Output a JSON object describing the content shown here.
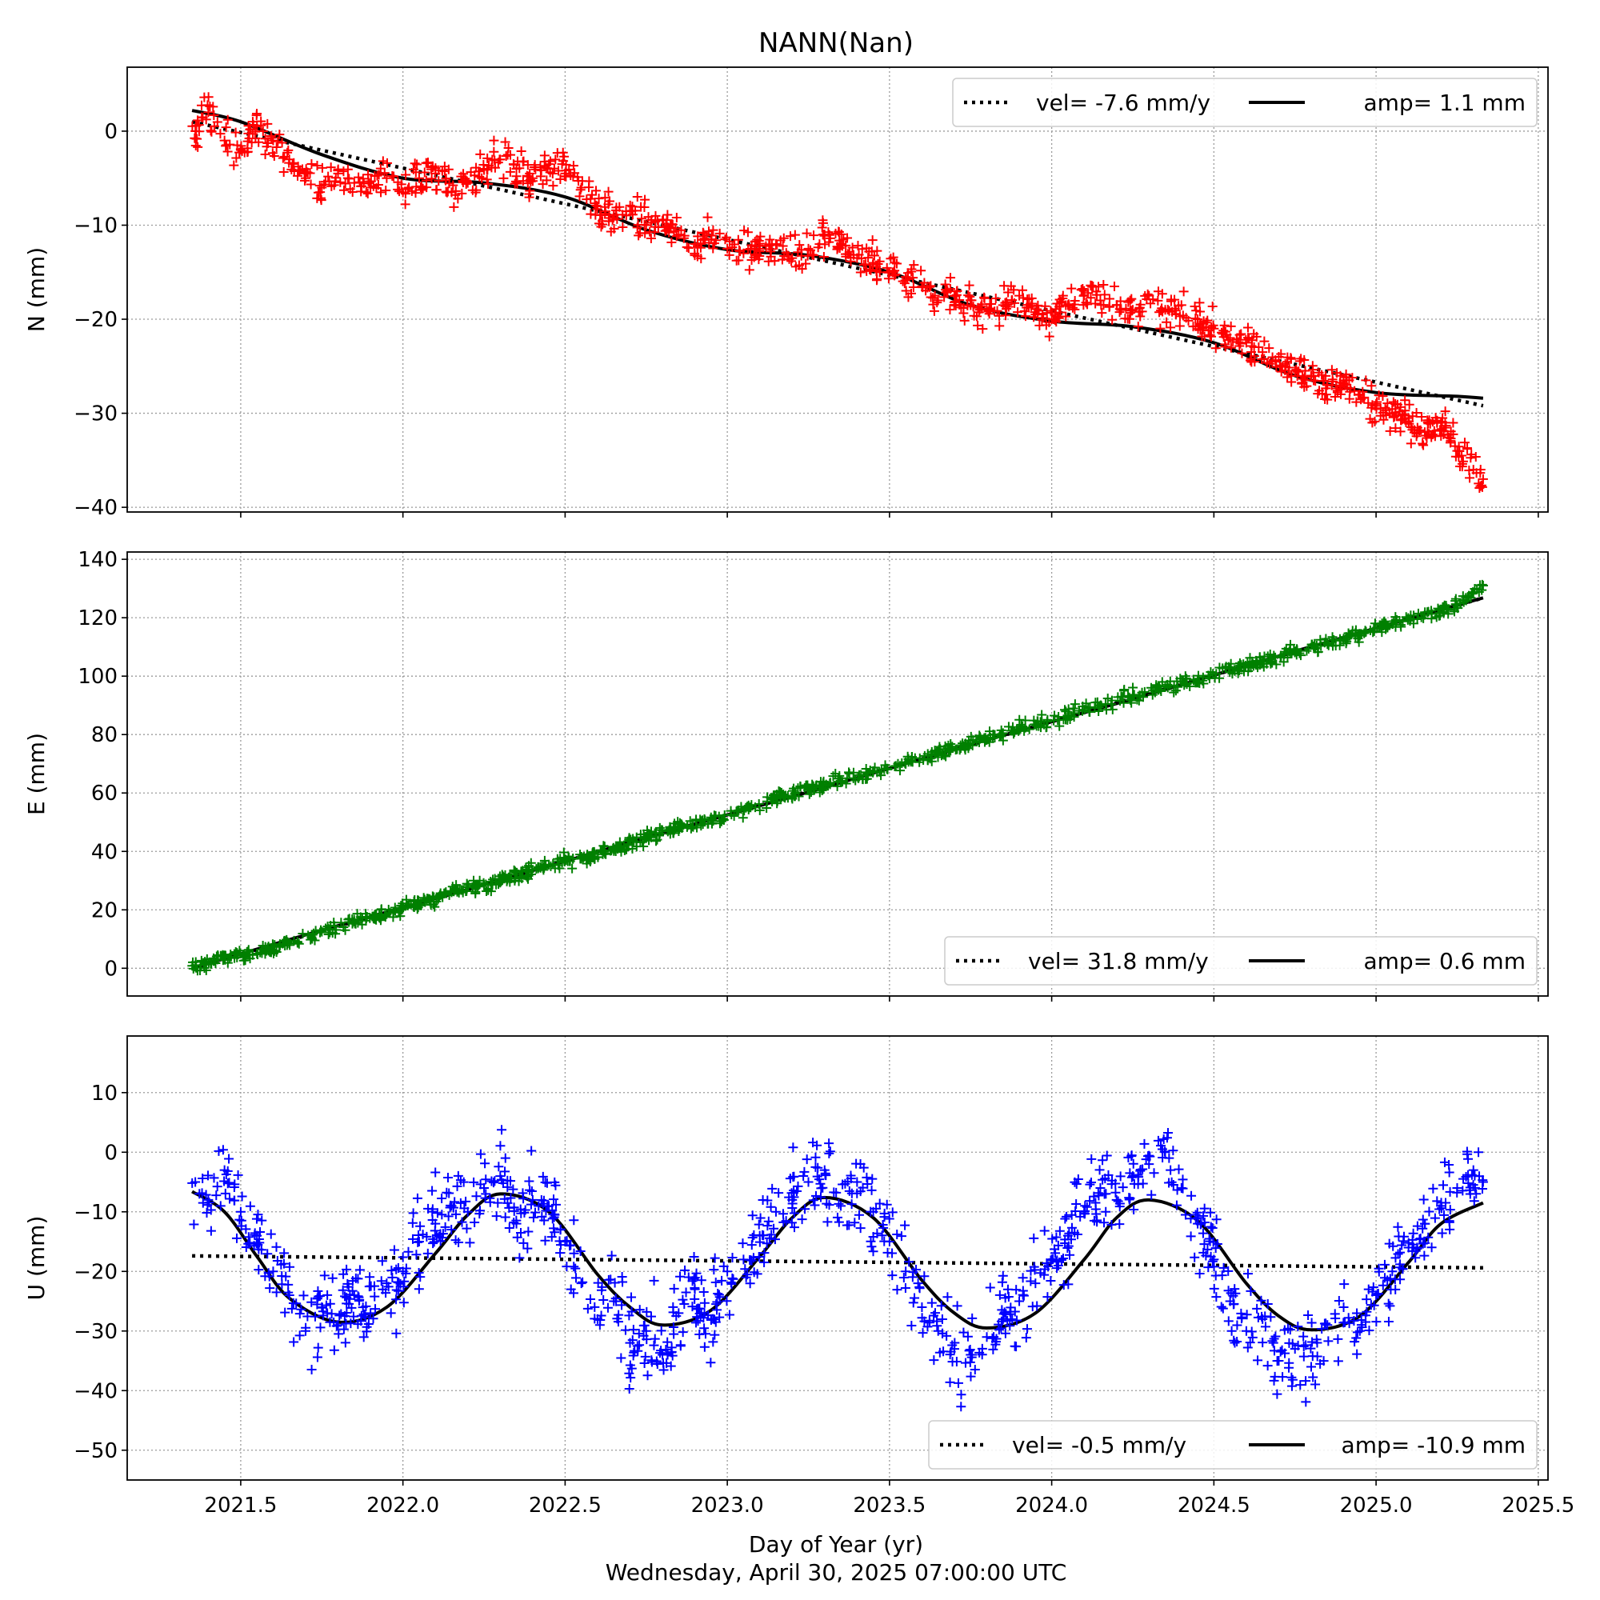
{
  "chart_data": {
    "type": "scatter",
    "title": "NANN(Nan)",
    "xlabel": "Day of Year (yr)",
    "footer": "Wednesday, April 30, 2025 07:00:00 UTC",
    "xlim": [
      2021.15,
      2025.53
    ],
    "x_ticks": [
      2021.5,
      2022.0,
      2022.5,
      2023.0,
      2023.5,
      2024.0,
      2024.5,
      2025.0,
      2025.5
    ],
    "x_tick_labels": [
      "2021.5",
      "2022.0",
      "2022.5",
      "2023.0",
      "2023.5",
      "2024.0",
      "2024.5",
      "2025.0",
      "2025.5"
    ],
    "t_start": 2021.35,
    "t_end": 2025.33,
    "grid": true,
    "panels": [
      {
        "id": "N",
        "ylabel": "N (mm)",
        "ylim": [
          -40.5,
          6.8
        ],
        "y_ticks": [
          0,
          -10,
          -20,
          -30,
          -40
        ],
        "y_tick_labels": [
          "0",
          "−10",
          "−20",
          "−30",
          "−40"
        ],
        "marker_color": "#ff0000",
        "legend_position": "top-right",
        "legend": {
          "vel_label": "vel= -7.6 mm/y",
          "amp_label": "amp= 1.1 mm"
        },
        "trend": {
          "x": [
            2021.35,
            2025.33
          ],
          "y": [
            1.0,
            -29.2
          ]
        },
        "fit": {
          "x": [
            2021.35,
            2021.5,
            2021.75,
            2022.0,
            2022.25,
            2022.5,
            2022.75,
            2023.0,
            2023.25,
            2023.5,
            2023.75,
            2024.0,
            2024.25,
            2024.5,
            2024.75,
            2025.0,
            2025.25,
            2025.33
          ],
          "y": [
            2.2,
            1.0,
            -2.5,
            -5.0,
            -5.5,
            -7.0,
            -10.5,
            -12.6,
            -13.2,
            -15.0,
            -18.5,
            -20.2,
            -20.8,
            -22.5,
            -26.0,
            -27.8,
            -28.2,
            -28.4
          ]
        },
        "scatter": {
          "x": [
            2021.36,
            2021.4,
            2021.45,
            2021.5,
            2021.55,
            2021.6,
            2021.65,
            2021.7,
            2021.75,
            2021.8,
            2021.85,
            2021.9,
            2021.95,
            2022.0,
            2022.05,
            2022.1,
            2022.15,
            2022.2,
            2022.25,
            2022.3,
            2022.35,
            2022.4,
            2022.45,
            2022.5,
            2022.55,
            2022.6,
            2022.65,
            2022.7,
            2022.75,
            2022.8,
            2022.85,
            2022.9,
            2022.95,
            2023.0,
            2023.05,
            2023.1,
            2023.15,
            2023.2,
            2023.25,
            2023.3,
            2023.35,
            2023.4,
            2023.45,
            2023.5,
            2023.55,
            2023.6,
            2023.65,
            2023.7,
            2023.75,
            2023.8,
            2023.85,
            2023.9,
            2023.95,
            2024.0,
            2024.05,
            2024.1,
            2024.15,
            2024.2,
            2024.25,
            2024.3,
            2024.35,
            2024.4,
            2024.45,
            2024.5,
            2024.55,
            2024.6,
            2024.65,
            2024.7,
            2024.75,
            2024.8,
            2024.85,
            2024.9,
            2024.95,
            2025.0,
            2025.05,
            2025.1,
            2025.15,
            2025.2,
            2025.25,
            2025.3,
            2025.33
          ],
          "y": [
            0.0,
            2.0,
            -1.0,
            -2.0,
            0.5,
            -1.0,
            -3.0,
            -5.0,
            -6.0,
            -4.5,
            -5.5,
            -6.0,
            -5.0,
            -6.5,
            -5.0,
            -4.5,
            -6.5,
            -5.5,
            -4.0,
            -3.0,
            -4.0,
            -5.0,
            -3.5,
            -4.5,
            -6.0,
            -8.0,
            -9.0,
            -8.5,
            -10.0,
            -9.5,
            -11.0,
            -12.0,
            -11.5,
            -12.5,
            -13.0,
            -12.5,
            -12.0,
            -13.5,
            -12.5,
            -11.0,
            -12.0,
            -13.5,
            -14.0,
            -15.0,
            -15.5,
            -16.5,
            -18.0,
            -17.5,
            -18.5,
            -19.0,
            -18.5,
            -17.5,
            -19.5,
            -20.0,
            -18.5,
            -17.0,
            -18.0,
            -18.5,
            -19.0,
            -17.5,
            -19.0,
            -18.5,
            -20.0,
            -21.0,
            -22.0,
            -22.5,
            -23.5,
            -24.0,
            -25.5,
            -26.0,
            -27.0,
            -26.5,
            -28.0,
            -29.0,
            -30.0,
            -30.5,
            -32.0,
            -31.0,
            -34.0,
            -36.0,
            -37.0
          ]
        }
      },
      {
        "id": "E",
        "ylabel": "E (mm)",
        "ylim": [
          -9.5,
          142.5
        ],
        "y_ticks": [
          0,
          20,
          40,
          60,
          80,
          100,
          120,
          140
        ],
        "y_tick_labels": [
          "0",
          "20",
          "40",
          "60",
          "80",
          "100",
          "120",
          "140"
        ],
        "marker_color": "#008000",
        "legend_position": "bottom-right",
        "legend": {
          "vel_label": "vel= 31.8 mm/y",
          "amp_label": "amp= 0.6 mm"
        },
        "trend": {
          "x": [
            2021.35,
            2025.33
          ],
          "y": [
            0.0,
            126.8
          ]
        },
        "fit": {
          "x": [
            2021.35,
            2021.75,
            2022.25,
            2022.75,
            2023.25,
            2023.75,
            2024.25,
            2024.75,
            2025.33
          ],
          "y": [
            0.0,
            13.0,
            28.6,
            44.7,
            60.3,
            76.6,
            92.2,
            108.5,
            126.8
          ]
        },
        "scatter": {
          "x": [
            2021.36,
            2021.45,
            2021.55,
            2021.65,
            2021.75,
            2021.85,
            2021.95,
            2022.05,
            2022.15,
            2022.25,
            2022.35,
            2022.45,
            2022.55,
            2022.65,
            2022.75,
            2022.85,
            2022.95,
            2023.05,
            2023.15,
            2023.25,
            2023.35,
            2023.45,
            2023.55,
            2023.65,
            2023.75,
            2023.85,
            2023.95,
            2024.05,
            2024.15,
            2024.25,
            2024.35,
            2024.45,
            2024.55,
            2024.65,
            2024.75,
            2024.85,
            2024.95,
            2025.05,
            2025.15,
            2025.25,
            2025.33
          ],
          "y": [
            1.0,
            3.5,
            5.0,
            8.5,
            12.5,
            16.0,
            18.5,
            22.0,
            26.0,
            28.5,
            32.0,
            35.5,
            37.5,
            41.0,
            45.0,
            48.5,
            51.0,
            54.0,
            58.0,
            61.0,
            64.0,
            67.5,
            70.5,
            74.0,
            77.0,
            80.5,
            83.5,
            86.5,
            90.0,
            93.0,
            96.5,
            98.5,
            102.5,
            105.0,
            108.5,
            111.0,
            114.5,
            118.0,
            121.0,
            124.0,
            131.0
          ]
        }
      },
      {
        "id": "U",
        "ylabel": "U (mm)",
        "ylim": [
          -55.0,
          19.5
        ],
        "y_ticks": [
          10,
          0,
          -10,
          -20,
          -30,
          -40,
          -50
        ],
        "y_tick_labels": [
          "10",
          "0",
          "−10",
          "−20",
          "−30",
          "−40",
          "−50"
        ],
        "marker_color": "#0000ff",
        "legend_position": "bottom-right",
        "legend": {
          "vel_label": "vel= -0.5 mm/y",
          "amp_label": "amp= -10.9 mm"
        },
        "trend": {
          "x": [
            2021.35,
            2025.33
          ],
          "y": [
            -17.4,
            -19.4
          ]
        },
        "fit": {
          "x": [
            2021.35,
            2021.45,
            2021.55,
            2021.65,
            2021.8,
            2021.95,
            2022.1,
            2022.2,
            2022.3,
            2022.45,
            2022.6,
            2022.7,
            2022.8,
            2022.95,
            2023.1,
            2023.2,
            2023.3,
            2023.45,
            2023.6,
            2023.7,
            2023.8,
            2023.95,
            2024.1,
            2024.2,
            2024.3,
            2024.45,
            2024.6,
            2024.7,
            2024.8,
            2024.95,
            2025.1,
            2025.2,
            2025.33
          ],
          "y": [
            -6.6,
            -10.0,
            -17.5,
            -24.5,
            -28.5,
            -26.0,
            -17.0,
            -10.5,
            -7.0,
            -10.0,
            -20.5,
            -26.0,
            -29.0,
            -26.5,
            -17.5,
            -11.0,
            -7.6,
            -11.0,
            -21.5,
            -27.0,
            -29.5,
            -27.0,
            -18.0,
            -11.0,
            -8.0,
            -11.5,
            -22.0,
            -27.5,
            -29.8,
            -27.5,
            -18.5,
            -12.0,
            -8.5
          ]
        },
        "scatter": {
          "x": [
            2021.36,
            2021.4,
            2021.45,
            2021.5,
            2021.55,
            2021.6,
            2021.65,
            2021.7,
            2021.75,
            2021.8,
            2021.85,
            2021.9,
            2021.95,
            2022.0,
            2022.05,
            2022.1,
            2022.15,
            2022.2,
            2022.25,
            2022.3,
            2022.35,
            2022.4,
            2022.45,
            2022.5,
            2022.55,
            2022.6,
            2022.65,
            2022.7,
            2022.75,
            2022.8,
            2022.85,
            2022.9,
            2022.95,
            2023.0,
            2023.05,
            2023.1,
            2023.15,
            2023.2,
            2023.25,
            2023.3,
            2023.35,
            2023.4,
            2023.45,
            2023.5,
            2023.55,
            2023.6,
            2023.65,
            2023.7,
            2023.75,
            2023.8,
            2023.85,
            2023.9,
            2023.95,
            2024.0,
            2024.05,
            2024.1,
            2024.15,
            2024.2,
            2024.25,
            2024.3,
            2024.35,
            2024.4,
            2024.45,
            2024.5,
            2024.55,
            2024.6,
            2024.65,
            2024.7,
            2024.75,
            2024.8,
            2024.85,
            2024.9,
            2024.95,
            2025.0,
            2025.05,
            2025.1,
            2025.15,
            2025.2,
            2025.25,
            2025.3,
            2025.33
          ],
          "y": [
            -5.0,
            -8.0,
            -3.0,
            -10.0,
            -14.0,
            -20.0,
            -24.0,
            -30.0,
            -26.0,
            -29.0,
            -24.0,
            -27.0,
            -22.0,
            -20.0,
            -15.0,
            -12.0,
            -9.0,
            -10.0,
            -6.0,
            -4.0,
            -12.0,
            -8.0,
            -9.0,
            -15.0,
            -22.0,
            -28.0,
            -25.0,
            -32.0,
            -30.0,
            -34.0,
            -27.0,
            -23.0,
            -28.0,
            -20.0,
            -18.0,
            -14.0,
            -10.0,
            -8.0,
            -5.0,
            -3.0,
            -9.0,
            -5.0,
            -10.0,
            -15.0,
            -20.0,
            -26.0,
            -30.0,
            -33.0,
            -34.0,
            -31.0,
            -28.0,
            -25.0,
            -22.0,
            -18.0,
            -14.0,
            -10.0,
            -6.0,
            -8.0,
            -4.0,
            -2.0,
            0.0,
            -6.0,
            -12.0,
            -18.0,
            -25.0,
            -30.0,
            -28.0,
            -35.0,
            -33.0,
            -36.0,
            -29.0,
            -26.0,
            -30.0,
            -24.0,
            -20.0,
            -16.0,
            -12.0,
            -9.0,
            -6.0,
            -3.0,
            -5.0
          ]
        }
      }
    ]
  }
}
